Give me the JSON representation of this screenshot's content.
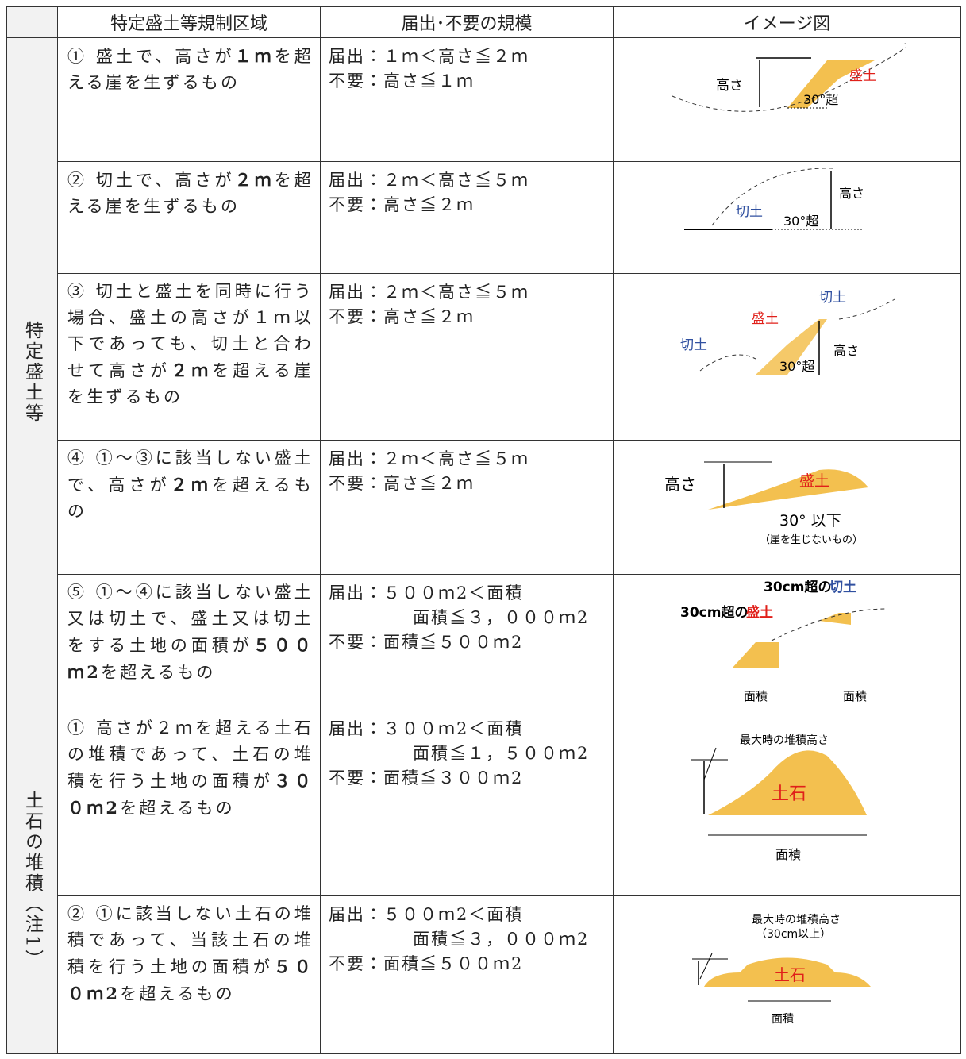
{
  "header": {
    "columns": [
      "特定盛土等規制区域",
      "届出･不要の規模",
      "イメージ図"
    ]
  },
  "groups": [
    {
      "label": "特定盛土等",
      "rows": [
        {
          "description": [
            {
              "text": "① 盛土で、高さが"
            },
            {
              "text": "１ｍ",
              "bold": true
            },
            {
              "text": "を超える崖を生ずるもの"
            }
          ],
          "scale": [
            {
              "label": "届出：",
              "text": [
                "１ｍ＜高さ≦２ｍ"
              ]
            },
            {
              "label": "不要：",
              "text": [
                "高さ≦１ｍ"
              ]
            }
          ],
          "image_labels": [
            "高さ",
            "盛土",
            "30°超"
          ]
        },
        {
          "description": [
            {
              "text": "② 切土で、高さが"
            },
            {
              "text": "２ｍ",
              "bold": true
            },
            {
              "text": "を超える崖を生ずるもの"
            }
          ],
          "scale": [
            {
              "label": "届出：",
              "text": [
                "２ｍ＜高さ≦５ｍ"
              ]
            },
            {
              "label": "不要：",
              "text": [
                "高さ≦２ｍ"
              ]
            }
          ],
          "image_labels": [
            "切土",
            "30°超",
            "高さ"
          ]
        },
        {
          "description": [
            {
              "text": "③ 切土と盛土を同時に行う場合、盛土の高さが１ｍ以下であっても、切土と合わせて高さが"
            },
            {
              "text": "２ｍ",
              "bold": true
            },
            {
              "text": "を超える崖を生ずるもの"
            }
          ],
          "scale": [
            {
              "label": "届出：",
              "text": [
                "２ｍ＜高さ≦５ｍ"
              ]
            },
            {
              "label": "不要：",
              "text": [
                "高さ≦２ｍ"
              ]
            }
          ],
          "image_labels": [
            "切土",
            "盛土",
            "切土",
            "高さ",
            "30°超"
          ]
        },
        {
          "description": [
            {
              "text": "④ ①～③に該当しない盛土で、高さが"
            },
            {
              "text": "２ｍ",
              "bold": true
            },
            {
              "text": "を超えるもの"
            }
          ],
          "scale": [
            {
              "label": "届出：",
              "text": [
                "２ｍ＜高さ≦５ｍ"
              ]
            },
            {
              "label": "不要：",
              "text": [
                "高さ≦２ｍ"
              ]
            }
          ],
          "image_labels": [
            "高さ",
            "盛土",
            "30° 以下",
            "（崖を生じないもの）"
          ]
        },
        {
          "description": [
            {
              "text": "⑤ ①～④に該当しない盛土又は切土で、盛土又は切土をする土地の面積が"
            },
            {
              "text": "５００ｍ2",
              "bold": true
            },
            {
              "text": "を超えるもの"
            }
          ],
          "scale": [
            {
              "label": "届出：",
              "text": [
                "５００ｍ2＜面積",
                "面積≦３，０００ｍ2"
              ]
            },
            {
              "label": "不要：",
              "text": [
                "面積≦５００ｍ2"
              ]
            }
          ],
          "image_labels": [
            "30cm超の",
            "切土",
            "30cm超の",
            "盛土",
            "面積",
            "面積"
          ]
        }
      ]
    },
    {
      "label": "土石の堆積（注1）",
      "rows": [
        {
          "description": [
            {
              "text": "① 高さが２ｍを超える土石の堆積であって、土石の堆積を行う土地の面積が"
            },
            {
              "text": "３００ｍ2",
              "bold": true
            },
            {
              "text": "を超えるもの"
            }
          ],
          "scale": [
            {
              "label": "届出：",
              "text": [
                "３００ｍ2＜面積",
                "面積≦１，５００ｍ2"
              ]
            },
            {
              "label": "不要：",
              "text": [
                "面積≦３００ｍ2"
              ]
            }
          ],
          "image_labels": [
            "最大時の堆積高さ",
            "土石",
            "面積"
          ]
        },
        {
          "description": [
            {
              "text": "② ①に該当しない土石の堆積であって、当該土石の堆積を行う土地の面積が"
            },
            {
              "text": "５００ｍ2",
              "bold": true
            },
            {
              "text": "を超えるもの"
            }
          ],
          "scale": [
            {
              "label": "届出：",
              "text": [
                "５００ｍ2＜面積",
                "面積≦３，０００ｍ2"
              ]
            },
            {
              "label": "不要：",
              "text": [
                "面積≦５００ｍ2"
              ]
            }
          ],
          "image_labels": [
            "最大時の堆積高さ",
            "（30cm以上）",
            "土石",
            "面積"
          ]
        }
      ]
    }
  ]
}
